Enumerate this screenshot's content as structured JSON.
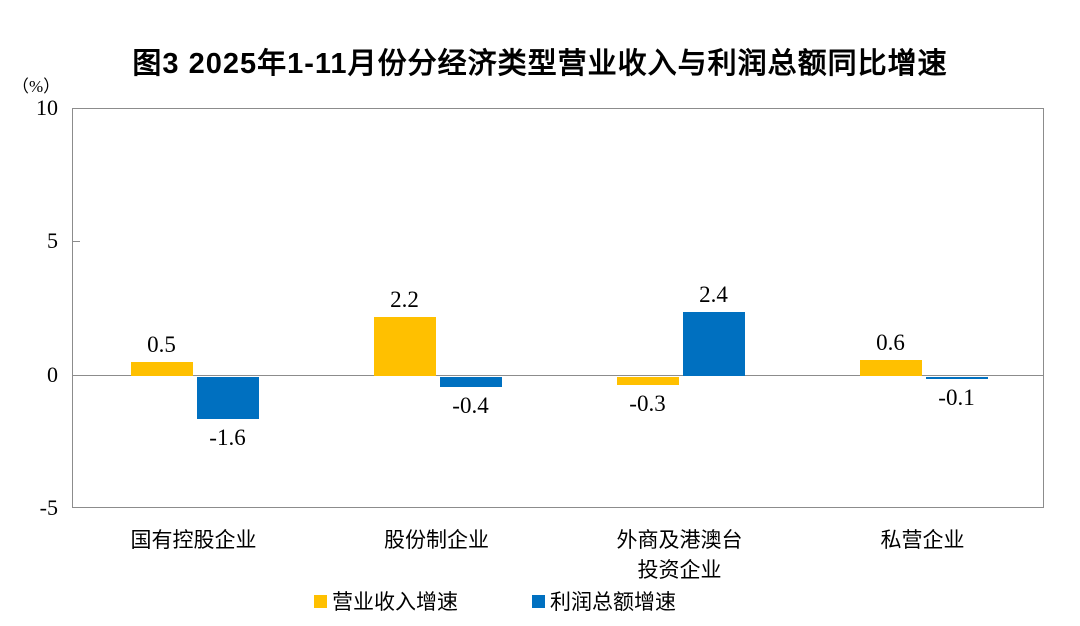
{
  "chart_data": {
    "type": "bar",
    "title": "图3 2025年1-11月份分经济类型营业收入与利润总额同比增速",
    "unit_label": "（%）",
    "categories": [
      "国有控股企业",
      "股份制企业",
      "外商及港澳台\n投资企业",
      "私营企业"
    ],
    "series": [
      {
        "name": "营业收入增速",
        "color": "#FFC000",
        "values": [
          0.5,
          2.2,
          -0.3,
          0.6
        ]
      },
      {
        "name": "利润总额增速",
        "color": "#0070C0",
        "values": [
          -1.6,
          -0.4,
          2.4,
          -0.1
        ]
      }
    ],
    "data_labels": [
      [
        "0.5",
        "2.2",
        "-0.3",
        "0.6"
      ],
      [
        "-1.6",
        "-0.4",
        "2.4",
        "-0.1"
      ]
    ],
    "y_ticks": [
      "10",
      "5",
      "0",
      "-5"
    ],
    "y_tick_values": [
      10,
      5,
      0,
      -5
    ],
    "ylim": [
      -5,
      10
    ],
    "grid": false,
    "legend_position": "bottom",
    "axis_color": "#8c8c8c"
  }
}
